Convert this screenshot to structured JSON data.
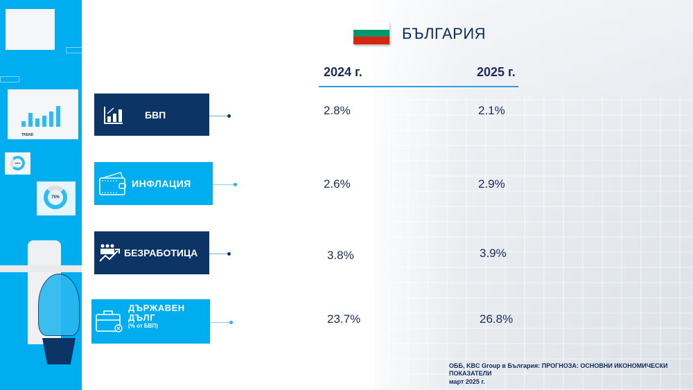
{
  "country": "БЪЛГАРИЯ",
  "flag_colors": [
    "#ffffff",
    "#00966e",
    "#d62612"
  ],
  "years": [
    "2024 г.",
    "2025 г."
  ],
  "indicators": [
    {
      "label": "БВП",
      "icon": "bar-chart-growth-icon",
      "v2024": "2.8%",
      "v2025": "2.1%",
      "color": "#0c3565"
    },
    {
      "label": "ИНФЛАЦИЯ",
      "icon": "wallet-icon",
      "v2024": "2.6%",
      "v2025": "2.9%",
      "color": "#00aeef"
    },
    {
      "label": "БЕЗРАБОТИЦА",
      "icon": "people-trend-icon",
      "v2024": "3.8%",
      "v2025": "3.9%",
      "color": "#0c3565"
    },
    {
      "label": "ДЪРЖАВЕН ДЪЛГ",
      "sublabel": "(% от БВП)",
      "icon": "briefcase-icon",
      "v2024": "23.7%",
      "v2025": "26.8%",
      "color": "#00aeef"
    }
  ],
  "illustration": {
    "trend_label": "TREND",
    "donut1": "60%",
    "donut2": "75%"
  },
  "source": {
    "line1": "ОББ, KBC Group в България: ПРОГНОЗА: ОСНОВНИ ИКОНОМИЧЕСКИ ПОКАЗАТЕЛИ",
    "line2": "март 2025 г."
  }
}
